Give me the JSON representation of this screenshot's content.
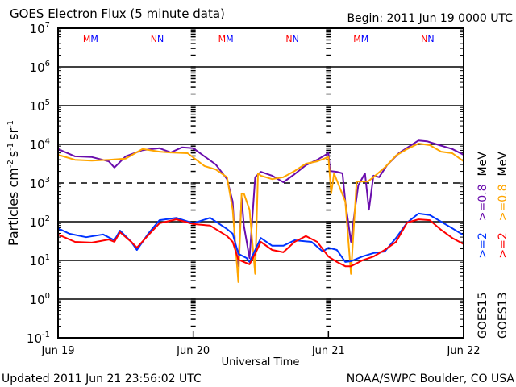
{
  "chart_data": {
    "type": "line",
    "title": "GOES Electron Flux (5 minute data)",
    "begin_label": "Begin: 2011 Jun 19 0000 UTC",
    "xlabel": "Universal Time",
    "ylabel_parts": [
      "Particles cm",
      "-2",
      "s",
      "-1",
      "sr",
      "-1"
    ],
    "yscale": "log",
    "ylim_log10": [
      -1,
      7
    ],
    "y_ticks": [
      {
        "base": "10",
        "exp": "7"
      },
      {
        "base": "10",
        "exp": "6"
      },
      {
        "base": "10",
        "exp": "5"
      },
      {
        "base": "10",
        "exp": "4"
      },
      {
        "base": "10",
        "exp": "3"
      },
      {
        "base": "10",
        "exp": "2"
      },
      {
        "base": "10",
        "exp": "1"
      },
      {
        "base": "10",
        "exp": "0"
      },
      {
        "base": "10",
        "exp": "-1"
      }
    ],
    "x_range_hours": [
      0,
      72
    ],
    "x_ticks": [
      "Jun 19",
      "Jun 20",
      "Jun 21",
      "Jun 22"
    ],
    "solid_gridlines_log10": [
      6,
      5,
      4,
      2,
      1,
      0
    ],
    "dashed_gridlines_log10": [
      3
    ],
    "markers": [
      {
        "label": "M",
        "hour": 5.0,
        "color": "#ff0000"
      },
      {
        "label": "M",
        "hour": 5.6,
        "color": "#0000ff"
      },
      {
        "label": "N",
        "hour": 17.0,
        "color": "#ff0000"
      },
      {
        "label": "N",
        "hour": 17.6,
        "color": "#0000ff"
      },
      {
        "label": "M",
        "hour": 29.0,
        "color": "#ff0000"
      },
      {
        "label": "M",
        "hour": 29.6,
        "color": "#0000ff"
      },
      {
        "label": "N",
        "hour": 41.0,
        "color": "#ff0000"
      },
      {
        "label": "N",
        "hour": 41.6,
        "color": "#0000ff"
      },
      {
        "label": "M",
        "hour": 53.0,
        "color": "#ff0000"
      },
      {
        "label": "M",
        "hour": 53.6,
        "color": "#0000ff"
      },
      {
        "label": "N",
        "hour": 65.0,
        "color": "#ff0000"
      },
      {
        "label": "N",
        "hour": 65.6,
        "color": "#0000ff"
      }
    ],
    "legend": {
      "placement": "right",
      "columns": [
        {
          "satellite": "GOES15",
          "items": [
            {
              "label": ">=2",
              "color": "#0033ff"
            },
            {
              "label": ">=0.8",
              "color": "#6a0dad"
            }
          ],
          "unit": "MeV"
        },
        {
          "satellite": "GOES13",
          "items": [
            {
              "label": ">=2",
              "color": "#ff0000"
            },
            {
              "label": ">=0.8",
              "color": "#ffa500"
            }
          ],
          "unit": "MeV"
        }
      ]
    },
    "series": [
      {
        "name": "GOES15 >=0.8 MeV",
        "color": "#6a0dad",
        "log10_flux": [
          [
            0,
            3.88
          ],
          [
            3,
            3.69
          ],
          [
            6,
            3.67
          ],
          [
            9,
            3.56
          ],
          [
            10,
            3.4
          ],
          [
            12,
            3.69
          ],
          [
            15,
            3.85
          ],
          [
            18,
            3.9
          ],
          [
            20,
            3.79
          ],
          [
            22,
            3.92
          ],
          [
            24,
            3.9
          ],
          [
            26,
            3.69
          ],
          [
            28,
            3.48
          ],
          [
            30,
            3.1
          ],
          [
            31,
            2.52
          ],
          [
            31.5,
            1.27
          ],
          [
            32,
            0.85
          ],
          [
            32.6,
            2.63
          ],
          [
            33,
            1.9
          ],
          [
            34,
            1.06
          ],
          [
            35,
            3.15
          ],
          [
            36,
            3.29
          ],
          [
            38,
            3.19
          ],
          [
            40,
            3.02
          ],
          [
            42,
            3.23
          ],
          [
            44,
            3.46
          ],
          [
            46,
            3.6
          ],
          [
            48,
            3.77
          ],
          [
            48.3,
            3.31
          ],
          [
            49.5,
            3.29
          ],
          [
            50.5,
            3.25
          ],
          [
            51,
            2.52
          ],
          [
            52,
            1.48
          ],
          [
            52.7,
            2.31
          ],
          [
            53.3,
            2.94
          ],
          [
            54.5,
            3.25
          ],
          [
            55.2,
            2.31
          ],
          [
            56,
            3.19
          ],
          [
            57,
            3.15
          ],
          [
            58.4,
            3.46
          ],
          [
            60.5,
            3.77
          ],
          [
            62.7,
            3.98
          ],
          [
            64,
            4.1
          ],
          [
            65.5,
            4.08
          ],
          [
            67.7,
            3.98
          ],
          [
            70,
            3.88
          ],
          [
            72,
            3.73
          ]
        ]
      },
      {
        "name": "GOES13 >=0.8 MeV",
        "color": "#ffa500",
        "log10_flux": [
          [
            0,
            3.73
          ],
          [
            3,
            3.6
          ],
          [
            6,
            3.58
          ],
          [
            9,
            3.6
          ],
          [
            12,
            3.63
          ],
          [
            15,
            3.88
          ],
          [
            18,
            3.81
          ],
          [
            20,
            3.79
          ],
          [
            23,
            3.77
          ],
          [
            26,
            3.44
          ],
          [
            28,
            3.35
          ],
          [
            30,
            3.15
          ],
          [
            31,
            2.31
          ],
          [
            32,
            0.44
          ],
          [
            32.6,
            2.73
          ],
          [
            33,
            2.73
          ],
          [
            34,
            2.31
          ],
          [
            35,
            0.65
          ],
          [
            35.5,
            3.25
          ],
          [
            36,
            3.19
          ],
          [
            38,
            3.1
          ],
          [
            40,
            3.15
          ],
          [
            42,
            3.31
          ],
          [
            44,
            3.5
          ],
          [
            46,
            3.56
          ],
          [
            48,
            3.67
          ],
          [
            48.5,
            2.73
          ],
          [
            49,
            3.25
          ],
          [
            51,
            2.52
          ],
          [
            52,
            0.65
          ],
          [
            53,
            3.04
          ],
          [
            55,
            3.04
          ],
          [
            56,
            3.15
          ],
          [
            58,
            3.4
          ],
          [
            60,
            3.71
          ],
          [
            62,
            3.88
          ],
          [
            64,
            4.02
          ],
          [
            66,
            3.98
          ],
          [
            68,
            3.81
          ],
          [
            70,
            3.77
          ],
          [
            72,
            3.56
          ]
        ]
      },
      {
        "name": "GOES15 >=2 MeV",
        "color": "#0033ff",
        "log10_flux": [
          [
            0,
            1.83
          ],
          [
            2,
            1.69
          ],
          [
            5,
            1.6
          ],
          [
            8,
            1.67
          ],
          [
            10,
            1.52
          ],
          [
            11,
            1.77
          ],
          [
            13,
            1.48
          ],
          [
            14,
            1.27
          ],
          [
            16,
            1.69
          ],
          [
            18,
            2.04
          ],
          [
            21,
            2.1
          ],
          [
            24,
            1.96
          ],
          [
            27,
            2.1
          ],
          [
            30,
            1.81
          ],
          [
            31,
            1.69
          ],
          [
            32,
            1.17
          ],
          [
            33.5,
            1.06
          ],
          [
            34,
            0.96
          ],
          [
            35,
            1.27
          ],
          [
            36,
            1.58
          ],
          [
            38,
            1.38
          ],
          [
            40,
            1.38
          ],
          [
            42,
            1.52
          ],
          [
            45,
            1.48
          ],
          [
            47,
            1.23
          ],
          [
            48,
            1.33
          ],
          [
            49.5,
            1.27
          ],
          [
            51,
            0.96
          ],
          [
            52,
            0.98
          ],
          [
            54,
            1.1
          ],
          [
            56,
            1.19
          ],
          [
            58,
            1.23
          ],
          [
            60,
            1.58
          ],
          [
            62,
            1.98
          ],
          [
            64,
            2.21
          ],
          [
            66,
            2.17
          ],
          [
            68,
            2.0
          ],
          [
            70,
            1.83
          ],
          [
            72,
            1.65
          ]
        ]
      },
      {
        "name": "GOES13 >=2 MeV",
        "color": "#ff0000",
        "log10_flux": [
          [
            0,
            1.67
          ],
          [
            3,
            1.48
          ],
          [
            6,
            1.46
          ],
          [
            9,
            1.54
          ],
          [
            10,
            1.48
          ],
          [
            11,
            1.73
          ],
          [
            13,
            1.48
          ],
          [
            14,
            1.33
          ],
          [
            16,
            1.65
          ],
          [
            18,
            1.96
          ],
          [
            21,
            2.06
          ],
          [
            24,
            1.94
          ],
          [
            27,
            1.9
          ],
          [
            30,
            1.63
          ],
          [
            31,
            1.48
          ],
          [
            32,
            1.02
          ],
          [
            33,
            0.96
          ],
          [
            34,
            0.9
          ],
          [
            35,
            1.17
          ],
          [
            36,
            1.48
          ],
          [
            38,
            1.27
          ],
          [
            40,
            1.21
          ],
          [
            42,
            1.48
          ],
          [
            44,
            1.63
          ],
          [
            46,
            1.48
          ],
          [
            48,
            1.1
          ],
          [
            49.5,
            0.96
          ],
          [
            51,
            0.85
          ],
          [
            52,
            0.85
          ],
          [
            54,
            1.0
          ],
          [
            56,
            1.1
          ],
          [
            58,
            1.27
          ],
          [
            60,
            1.48
          ],
          [
            62,
            1.98
          ],
          [
            64,
            2.06
          ],
          [
            66,
            2.04
          ],
          [
            68,
            1.79
          ],
          [
            70,
            1.58
          ],
          [
            72,
            1.42
          ]
        ]
      }
    ]
  },
  "footer": {
    "updated": "Updated 2011 Jun 21 23:56:02 UTC",
    "credit": "NOAA/SWPC Boulder, CO USA"
  }
}
